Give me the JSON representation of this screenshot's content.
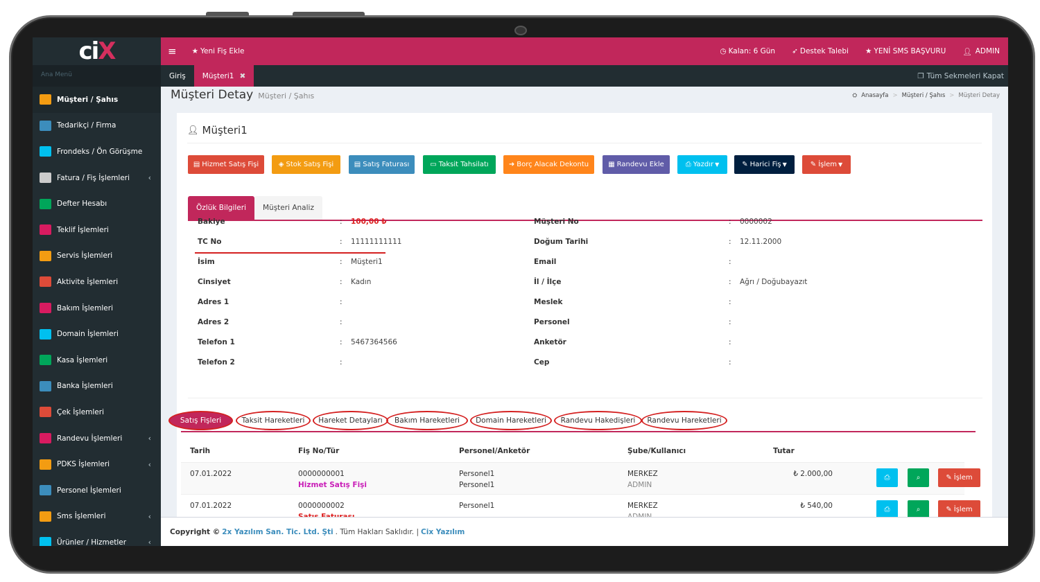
{
  "app": {
    "logo_text_a": "ci",
    "logo_text_b": "X"
  },
  "sidebar": {
    "menu_header": "Ana Menü",
    "items": [
      {
        "label": "Müşteri / Şahıs",
        "icon": "users-icon",
        "color": "#f39c12",
        "active": true
      },
      {
        "label": "Tedarikçi / Firma",
        "icon": "building-icon",
        "color": "#3c8dbc"
      },
      {
        "label": "Frondeks / Ön Görüşme",
        "icon": "comment-icon",
        "color": "#00c0ef"
      },
      {
        "label": "Fatura / Fiş İşlemleri",
        "icon": "copy-icon",
        "color": "#cccccc",
        "chevron": true
      },
      {
        "label": "Defter Hesabı",
        "icon": "book-icon",
        "color": "#00a65a"
      },
      {
        "label": "Teklif İşlemleri",
        "icon": "pin-icon",
        "color": "#d81b60"
      },
      {
        "label": "Servis İşlemleri",
        "icon": "cogs-icon",
        "color": "#f39c12"
      },
      {
        "label": "Aktivite İşlemleri",
        "icon": "database-icon",
        "color": "#dd4b39"
      },
      {
        "label": "Bakım İşlemleri",
        "icon": "exchange-icon",
        "color": "#d81b60"
      },
      {
        "label": "Domain İşlemleri",
        "icon": "desktop-icon",
        "color": "#00c0ef"
      },
      {
        "label": "Kasa İşlemleri",
        "icon": "money-icon",
        "color": "#00a65a"
      },
      {
        "label": "Banka İşlemleri",
        "icon": "bank-icon",
        "color": "#3c8dbc"
      },
      {
        "label": "Çek İşlemleri",
        "icon": "id-card-icon",
        "color": "#dd4b39"
      },
      {
        "label": "Randevu İşlemleri",
        "icon": "calendar-icon",
        "color": "#d81b60",
        "chevron": true
      },
      {
        "label": "PDKS İşlemleri",
        "icon": "user-circle-icon",
        "color": "#f39c12",
        "chevron": true
      },
      {
        "label": "Personel İşlemleri",
        "icon": "address-card-icon",
        "color": "#3c8dbc"
      },
      {
        "label": "Sms İşlemleri",
        "icon": "paper-plane-icon",
        "color": "#f39c12",
        "chevron": true
      },
      {
        "label": "Ürünler / Hizmetler",
        "icon": "database-icon",
        "color": "#00c0ef",
        "chevron": true
      }
    ]
  },
  "header": {
    "menu_toggle": "≡",
    "new_receipt": "Yeni Fiş Ekle",
    "remaining": "Kalan: 6 Gün",
    "support": "Destek Talebi",
    "sms_apply": "YENİ SMS BAŞVURU",
    "user": "ADMIN"
  },
  "tabs": {
    "items": [
      "Giriş",
      "Müşteri1"
    ],
    "close_all": "Tüm Sekmeleri Kapat"
  },
  "page": {
    "title": "Müşteri Detay",
    "subtitle": "Müşteri / Şahıs",
    "breadcrumb": [
      "Anasayfa",
      "Müşteri / Şahıs",
      "Müşteri Detay"
    ],
    "customer_name": "Müşteri1"
  },
  "actions": [
    {
      "label": "Hizmet Satış Fişi",
      "color": "#dd4b39"
    },
    {
      "label": "Stok Satış Fişi",
      "color": "#f39c12"
    },
    {
      "label": "Satış Faturası",
      "color": "#3c8dbc"
    },
    {
      "label": "Taksit Tahsilatı",
      "color": "#00a65a"
    },
    {
      "label": "Borç Alacak Dekontu",
      "color": "#ff851b"
    },
    {
      "label": "Randevu Ekle",
      "color": "#605ca8"
    },
    {
      "label": "Yazdır",
      "color": "#00c0ef"
    },
    {
      "label": "Harici Fiş",
      "color": "#001f3f"
    },
    {
      "label": "İşlem",
      "color": "#dd4b39"
    }
  ],
  "info_tabs": [
    "Özlük Bilgileri",
    "Müşteri Analiz"
  ],
  "fields_left": [
    {
      "label": "Bakiye",
      "value": "100,00 ₺"
    },
    {
      "label": "TC No",
      "value": "11111111111"
    },
    {
      "label": "İsim",
      "value": "Müşteri1"
    },
    {
      "label": "Cinsiyet",
      "value": "Kadın"
    },
    {
      "label": "Adres 1",
      "value": ""
    },
    {
      "label": "Adres 2",
      "value": ""
    },
    {
      "label": "Telefon 1",
      "value": "5467364566"
    },
    {
      "label": "Telefon 2",
      "value": ""
    }
  ],
  "fields_right": [
    {
      "label": "Müşteri No",
      "value": "0000002"
    },
    {
      "label": "Doğum Tarihi",
      "value": "12.11.2000"
    },
    {
      "label": "Email",
      "value": ""
    },
    {
      "label": "İl / İlçe",
      "value": "Ağrı / Doğubayazıt"
    },
    {
      "label": "Meslek",
      "value": ""
    },
    {
      "label": "Personel",
      "value": ""
    },
    {
      "label": "Anketör",
      "value": ""
    },
    {
      "label": "Cep",
      "value": ""
    }
  ],
  "colon": ":",
  "bottom_tabs": [
    "Satış Fişleri",
    "Taksit Hareketleri",
    "Hareket Detayları",
    "Bakım Hareketleri",
    "Domain Hareketleri",
    "Randevu Hakedişleri",
    "Randevu Hareketleri"
  ],
  "table": {
    "headers": [
      "Tarih",
      "Fiş No/Tür",
      "Personel/Anketör",
      "Şube/Kullanıcı",
      "Tutar"
    ],
    "rows": [
      {
        "date": "07.01.2022",
        "no": "0000000001",
        "type": "Hizmet Satış Fişi",
        "personel": "Personel1",
        "anketor": "Personel1",
        "branch": "MERKEZ",
        "user": "ADMIN",
        "amount": "2.000,00 ₺"
      },
      {
        "date": "07.01.2022",
        "no": "0000000002",
        "type": "Satış Faturası",
        "personel": "Personel1",
        "anketor": "",
        "branch": "MERKEZ",
        "user": "ADMIN",
        "amount": "540,00 ₺"
      }
    ],
    "row_action": "İşlem"
  },
  "footer": {
    "copyright": "Copyright ©",
    "company": "2x Yazılım San. Tic. Ltd. Şti",
    "rights": ". Tüm Hakları Saklıdır. |",
    "brand": "Cix Yazılım"
  }
}
